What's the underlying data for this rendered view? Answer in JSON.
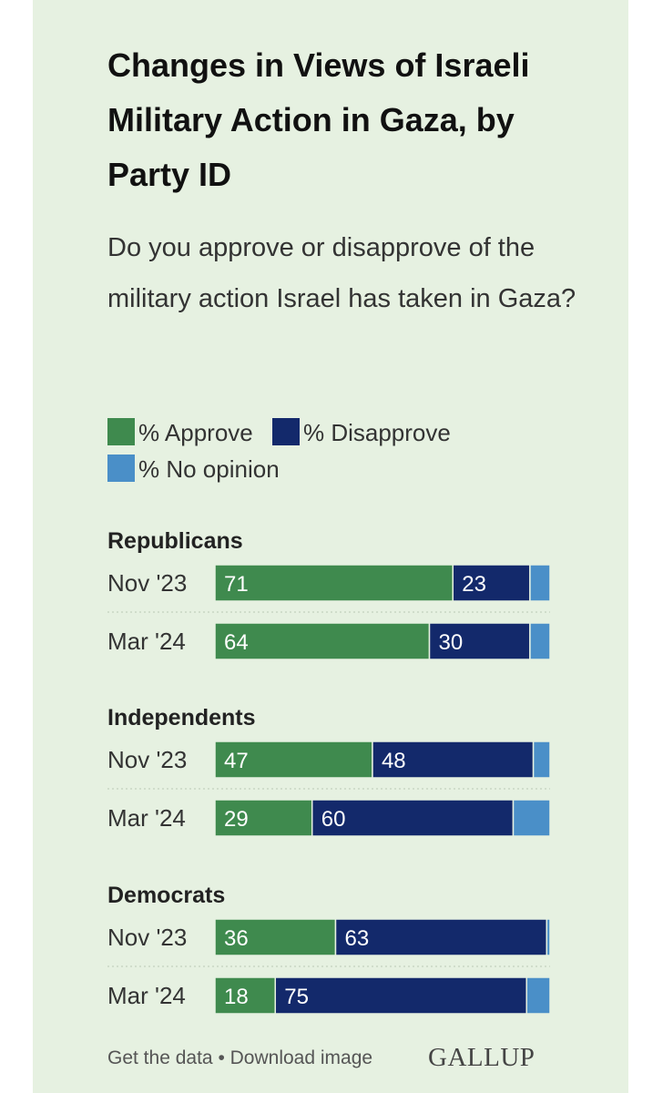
{
  "title": "Changes in Views of Israeli Military Action in Gaza, by Party ID",
  "subtitle": "Do you approve or disapprove of the military action Israel has taken in Gaza?",
  "legend": [
    {
      "label": "% Approve",
      "color": "#3f8a4e"
    },
    {
      "label": "% Disapprove",
      "color": "#13296b"
    },
    {
      "label": "% No opinion",
      "color": "#4a8fc8"
    }
  ],
  "footer": {
    "get_data": "Get the data",
    "separator": "•",
    "download": "Download image",
    "brand": "GALLUP"
  },
  "chart_data": {
    "type": "bar",
    "orientation": "horizontal",
    "stacked": true,
    "groups": [
      {
        "name": "Republicans",
        "rows": [
          {
            "label": "Nov '23",
            "values": [
              71,
              23,
              6
            ]
          },
          {
            "label": "Mar '24",
            "values": [
              64,
              30,
              6
            ]
          }
        ]
      },
      {
        "name": "Independents",
        "rows": [
          {
            "label": "Nov '23",
            "values": [
              47,
              48,
              5
            ]
          },
          {
            "label": "Mar '24",
            "values": [
              29,
              60,
              11
            ]
          }
        ]
      },
      {
        "name": "Democrats",
        "rows": [
          {
            "label": "Nov '23",
            "values": [
              36,
              63,
              1
            ]
          },
          {
            "label": "Mar '24",
            "values": [
              18,
              75,
              7
            ]
          }
        ]
      }
    ],
    "series": [
      {
        "name": "% Approve",
        "color": "#3f8a4e",
        "show_labels": true
      },
      {
        "name": "% Disapprove",
        "color": "#13296b",
        "show_labels": true
      },
      {
        "name": "% No opinion",
        "color": "#4a8fc8",
        "show_labels": false
      }
    ],
    "xlim": [
      0,
      100
    ]
  }
}
